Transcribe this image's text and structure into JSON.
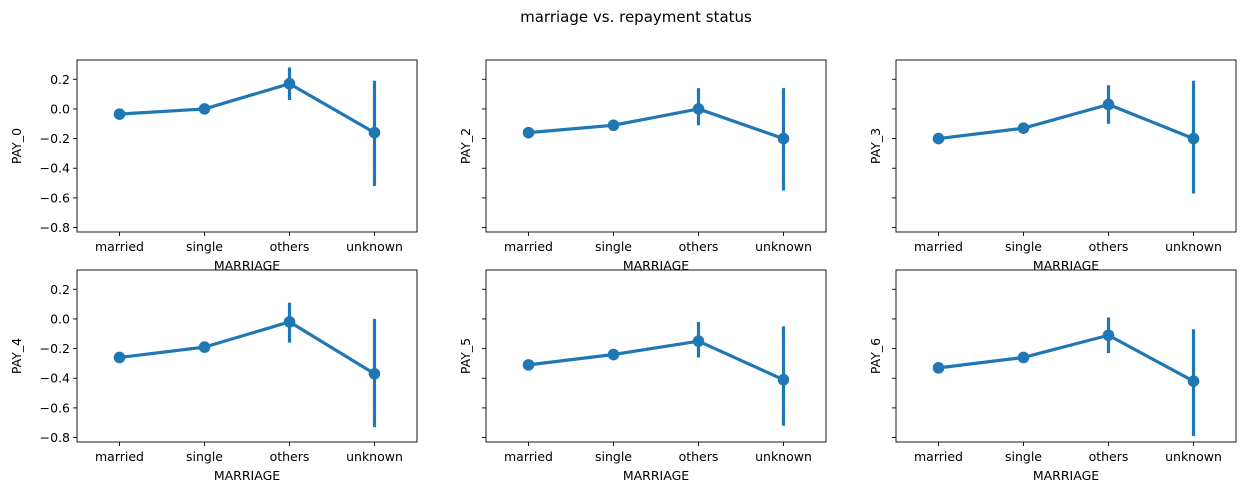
{
  "chart_data": {
    "type": "line",
    "title": "marriage vs. repayment status",
    "xlabel": "MARRIAGE",
    "ylim": [
      -0.83,
      0.33
    ],
    "yticks": [
      "0.2",
      "0.0",
      "−0.2",
      "−0.4",
      "−0.6",
      "−0.8"
    ],
    "ytick_values": [
      0.2,
      0.0,
      -0.2,
      -0.4,
      -0.6,
      -0.8
    ],
    "categories": [
      "married",
      "single",
      "others",
      "unknown"
    ],
    "color": "#1f77b4",
    "grid": false,
    "legend": "none",
    "shared_y": true,
    "panels": [
      {
        "ylabel": "PAY_0",
        "values": [
          -0.035,
          0.0,
          0.17,
          -0.16
        ],
        "err_low": [
          -0.045,
          -0.01,
          0.06,
          -0.52
        ],
        "err_high": [
          -0.025,
          0.01,
          0.28,
          0.19
        ]
      },
      {
        "ylabel": "PAY_2",
        "values": [
          -0.16,
          -0.11,
          0.0,
          -0.2
        ],
        "err_low": [
          -0.17,
          -0.12,
          -0.11,
          -0.55
        ],
        "err_high": [
          -0.15,
          -0.1,
          0.14,
          0.14
        ]
      },
      {
        "ylabel": "PAY_3",
        "values": [
          -0.2,
          -0.13,
          0.03,
          -0.2
        ],
        "err_low": [
          -0.21,
          -0.14,
          -0.1,
          -0.57
        ],
        "err_high": [
          -0.19,
          -0.12,
          0.16,
          0.19
        ]
      },
      {
        "ylabel": "PAY_4",
        "values": [
          -0.26,
          -0.19,
          -0.02,
          -0.37
        ],
        "err_low": [
          -0.27,
          -0.2,
          -0.16,
          -0.73
        ],
        "err_high": [
          -0.25,
          -0.18,
          0.11,
          0.0
        ]
      },
      {
        "ylabel": "PAY_5",
        "values": [
          -0.31,
          -0.24,
          -0.15,
          -0.41
        ],
        "err_low": [
          -0.32,
          -0.25,
          -0.26,
          -0.72
        ],
        "err_high": [
          -0.3,
          -0.23,
          -0.02,
          -0.05
        ]
      },
      {
        "ylabel": "PAY_6",
        "values": [
          -0.33,
          -0.26,
          -0.11,
          -0.42
        ],
        "err_low": [
          -0.34,
          -0.27,
          -0.23,
          -0.79
        ],
        "err_high": [
          -0.32,
          -0.25,
          0.01,
          -0.07
        ]
      }
    ]
  }
}
